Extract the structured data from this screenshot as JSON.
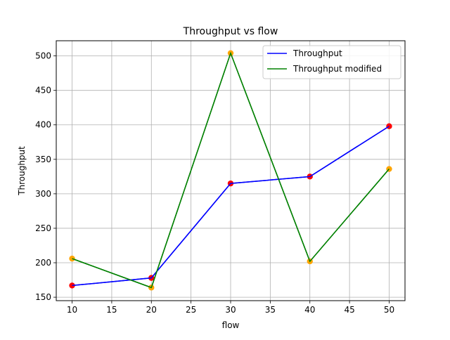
{
  "chart_data": {
    "type": "line",
    "title": "Throughput vs flow",
    "xlabel": "flow",
    "ylabel": "Throughput",
    "x": [
      10,
      20,
      30,
      40,
      50
    ],
    "xlim": [
      8,
      52
    ],
    "ylim": [
      145,
      522
    ],
    "xticks": [
      10,
      15,
      20,
      25,
      30,
      35,
      40,
      45,
      50
    ],
    "yticks": [
      150,
      200,
      250,
      300,
      350,
      400,
      450,
      500
    ],
    "grid": true,
    "legend_position": "top-right",
    "series": [
      {
        "name": "Throughput",
        "values": [
          167,
          178,
          315,
          325,
          398
        ],
        "line_color": "#0000ff",
        "marker_color": "#ff0000"
      },
      {
        "name": "Throughput modified",
        "values": [
          206,
          164,
          504,
          202,
          336
        ],
        "line_color": "#008000",
        "marker_color": "#ffa500"
      }
    ]
  }
}
